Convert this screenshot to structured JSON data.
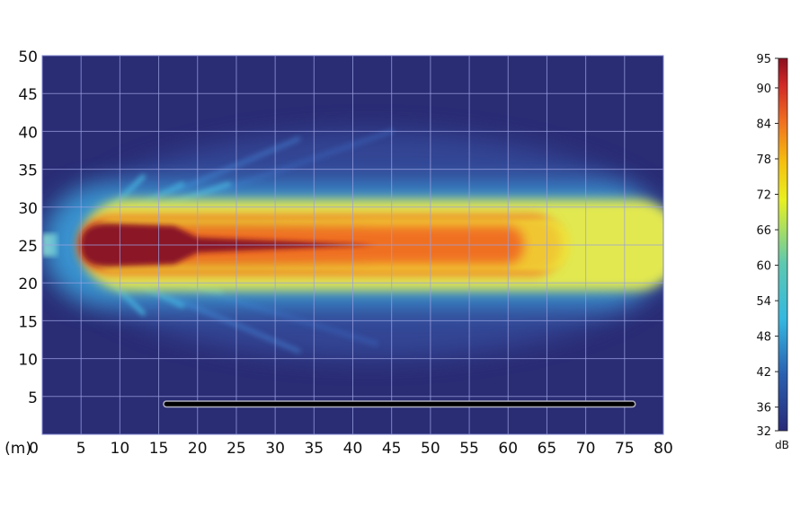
{
  "chart_data": {
    "type": "heatmap",
    "title": "",
    "x_unit_label": "(m)",
    "xlim": [
      0,
      80
    ],
    "ylim": [
      0,
      50
    ],
    "x_ticks": [
      0,
      5,
      10,
      15,
      20,
      25,
      30,
      35,
      40,
      45,
      50,
      55,
      60,
      65,
      70,
      75,
      80
    ],
    "y_ticks": [
      5,
      10,
      15,
      20,
      25,
      30,
      35,
      40,
      45,
      50
    ],
    "grid": true,
    "colorbar": {
      "label": "dB",
      "range": [
        32,
        95
      ],
      "ticks": [
        95,
        90,
        84,
        78,
        72,
        66,
        60,
        54,
        48,
        42,
        36,
        32
      ],
      "colors": [
        "#282a78",
        "#2a5fb0",
        "#35b8e0",
        "#5ec8b0",
        "#e8f020",
        "#f5c010",
        "#f07020",
        "#d02828",
        "#8a1020"
      ]
    },
    "source_position": {
      "x": 0,
      "y": 25
    },
    "regions": [
      {
        "level_db": 45,
        "x": [
          0,
          80
        ],
        "y": [
          17,
          33
        ]
      },
      {
        "level_db": 70,
        "x": [
          5,
          80
        ],
        "y": [
          19,
          31
        ]
      },
      {
        "level_db": 80,
        "x": [
          5,
          67
        ],
        "y": [
          21,
          29
        ]
      },
      {
        "level_db": 90,
        "x": [
          5,
          43
        ],
        "y": [
          22.5,
          27.5
        ]
      }
    ],
    "barrier": {
      "x": [
        16,
        76
      ],
      "y": 4
    },
    "background_color": "#2a2c74"
  }
}
